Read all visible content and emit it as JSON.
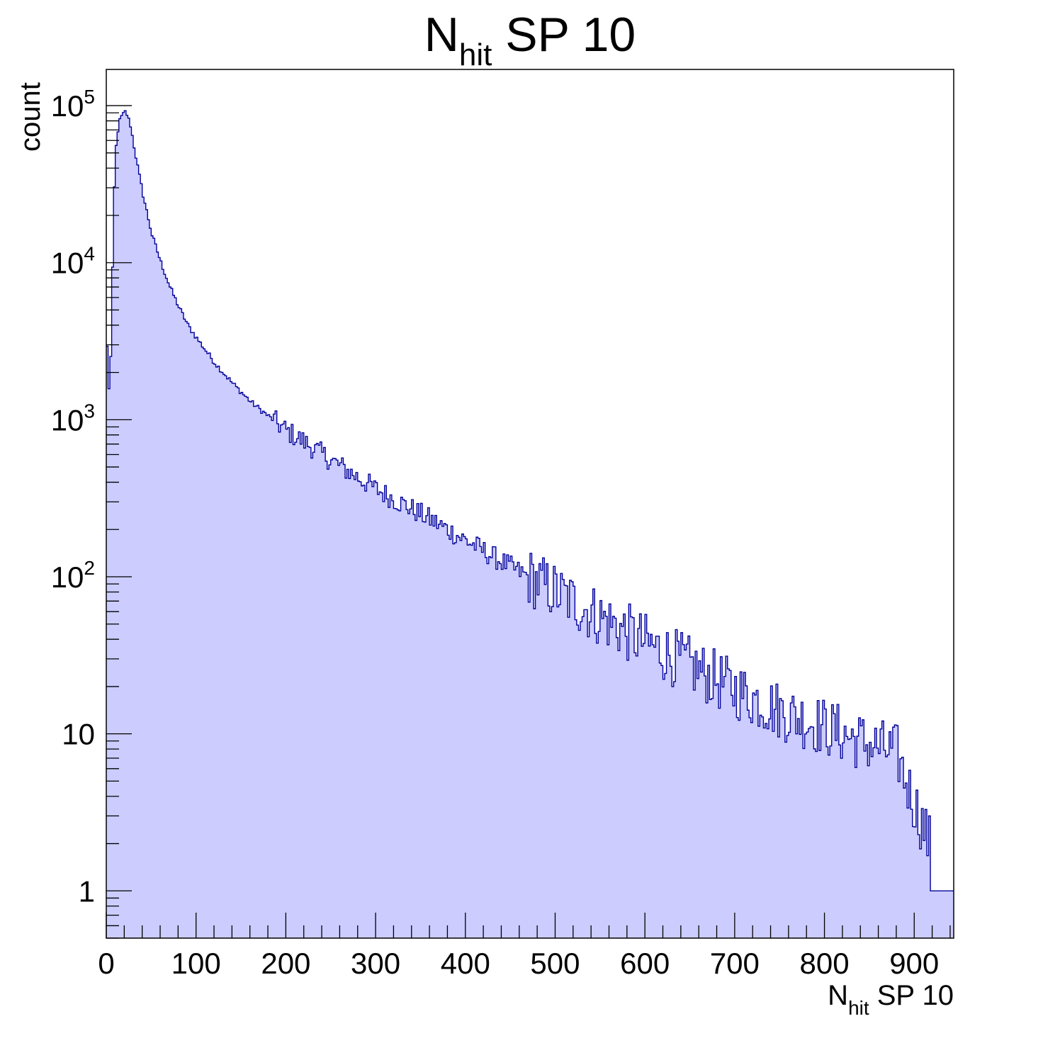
{
  "chart_data": {
    "type": "histogram",
    "title": {
      "main": "N",
      "sub": "hit",
      "rest": " SP 10"
    },
    "xlabel": {
      "main": "N",
      "sub": "hit",
      "rest": " SP 10"
    },
    "ylabel": "count",
    "xlim": [
      0,
      944
    ],
    "ylim": [
      0.5,
      170000
    ],
    "y_scale": "log",
    "grid": false,
    "legend": "none",
    "bin_width": 2,
    "x_ticks": [
      "0",
      "100",
      "200",
      "300",
      "400",
      "500",
      "600",
      "700",
      "800",
      "900"
    ],
    "y_ticks": [
      {
        "base": "1",
        "exp": ""
      },
      {
        "base": "10",
        "exp": ""
      },
      {
        "base": "10",
        "exp": "2"
      },
      {
        "base": "10",
        "exp": "3"
      },
      {
        "base": "10",
        "exp": "4"
      },
      {
        "base": "10",
        "exp": "5"
      }
    ],
    "profile": [
      [
        0,
        2900
      ],
      [
        2,
        1600
      ],
      [
        4,
        2500
      ],
      [
        6,
        9000
      ],
      [
        8,
        30000
      ],
      [
        10,
        55000
      ],
      [
        12,
        70000
      ],
      [
        14,
        80000
      ],
      [
        16,
        85000
      ],
      [
        18,
        88000
      ],
      [
        20,
        91000
      ],
      [
        22,
        88000
      ],
      [
        26,
        75000
      ],
      [
        30,
        55000
      ],
      [
        35,
        38000
      ],
      [
        40,
        27000
      ],
      [
        50,
        15000
      ],
      [
        60,
        10000
      ],
      [
        70,
        7000
      ],
      [
        80,
        5200
      ],
      [
        90,
        4000
      ],
      [
        100,
        3300
      ],
      [
        120,
        2300
      ],
      [
        140,
        1700
      ],
      [
        160,
        1300
      ],
      [
        180,
        1050
      ],
      [
        200,
        850
      ],
      [
        220,
        720
      ],
      [
        250,
        550
      ],
      [
        300,
        360
      ],
      [
        350,
        250
      ],
      [
        400,
        170
      ],
      [
        450,
        115
      ],
      [
        500,
        80
      ],
      [
        550,
        55
      ],
      [
        600,
        38
      ],
      [
        650,
        27
      ],
      [
        700,
        19
      ],
      [
        750,
        14
      ],
      [
        800,
        11
      ],
      [
        850,
        8.5
      ],
      [
        880,
        7.5
      ],
      [
        890,
        5
      ],
      [
        900,
        3.5
      ],
      [
        910,
        2.5
      ],
      [
        916,
        2
      ]
    ],
    "tail_points": [
      [
        918,
        1
      ],
      [
        922,
        1
      ],
      [
        926,
        1
      ],
      [
        930,
        1
      ],
      [
        936,
        1
      ],
      [
        942,
        1
      ]
    ],
    "fluctuation": 0.12,
    "colors": {
      "fill": "#ccccff",
      "line": "#000099",
      "frame": "#000000"
    }
  }
}
